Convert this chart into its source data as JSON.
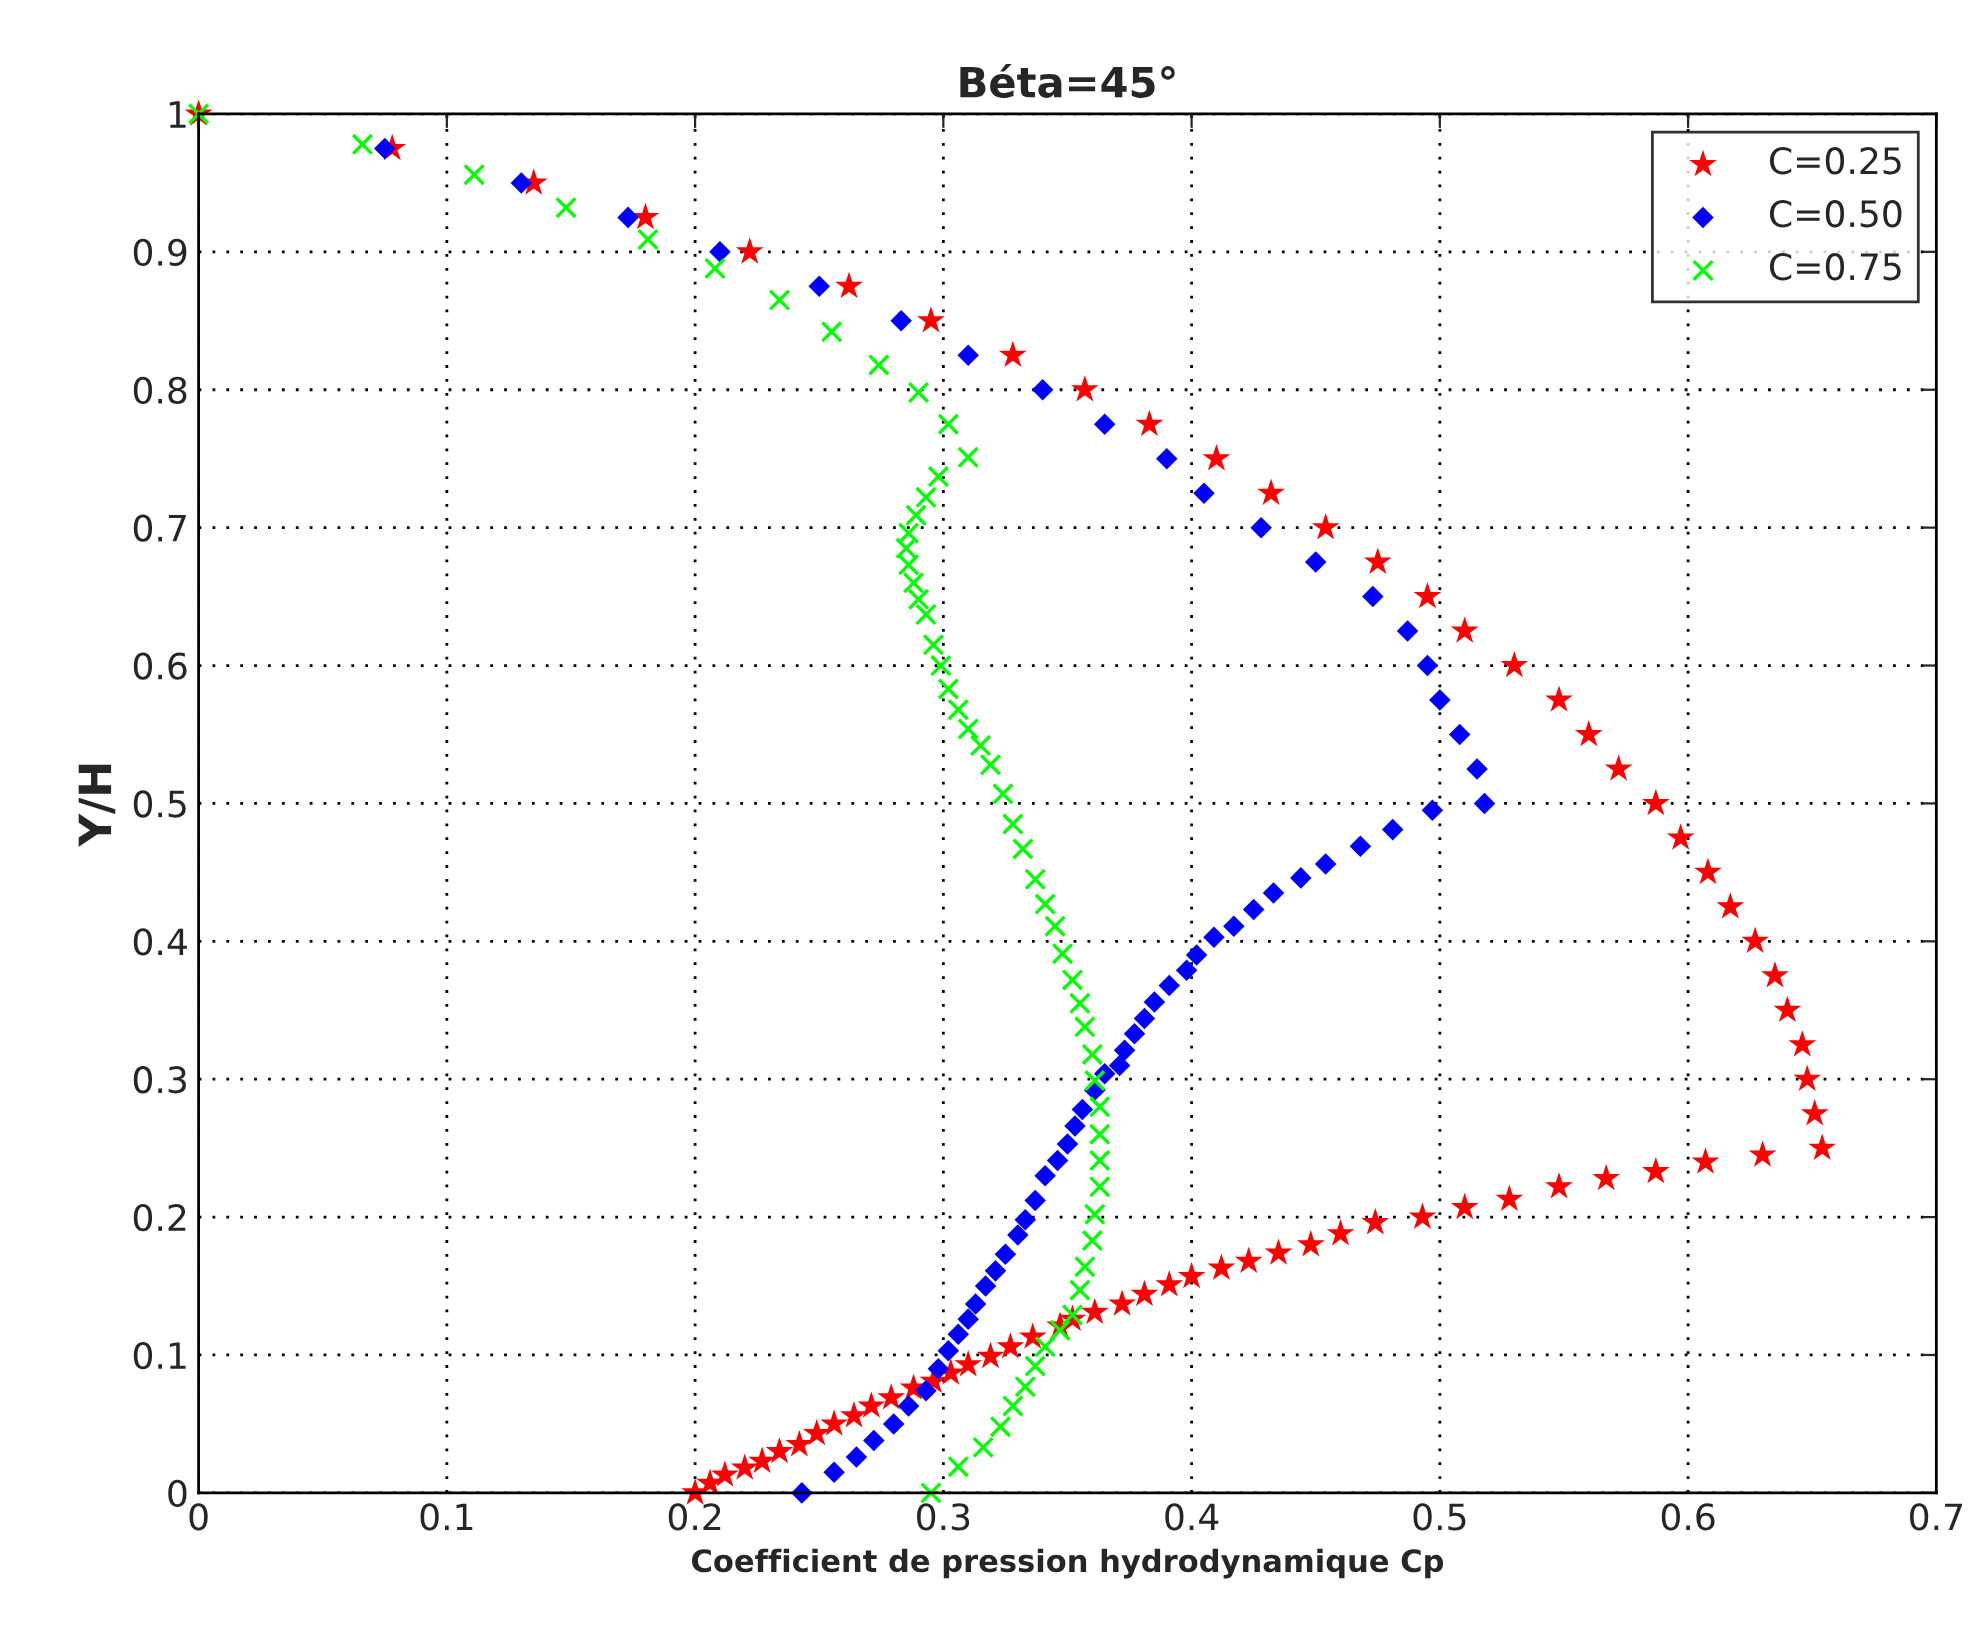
{
  "chart_data": {
    "type": "scatter",
    "title": "Béta=45°",
    "xlabel": "Coefficient de pression hydrodynamique Cp",
    "ylabel": "Y/H",
    "xlim": [
      0,
      0.7
    ],
    "xticks": [
      0,
      0.1,
      0.2,
      0.3,
      0.4,
      0.5,
      0.6,
      0.7
    ],
    "ylim": [
      0,
      1
    ],
    "yticks": [
      0,
      0.1,
      0.2,
      0.3,
      0.4,
      0.5,
      0.6,
      0.7,
      0.8,
      0.9,
      1
    ],
    "grid": true,
    "legend": "top right",
    "series": [
      {
        "name": "C=0.25",
        "color": "#ff0000",
        "marker": "star",
        "x": [
          0.0,
          0.078,
          0.135,
          0.18,
          0.222,
          0.262,
          0.295,
          0.328,
          0.357,
          0.383,
          0.41,
          0.432,
          0.454,
          0.475,
          0.495,
          0.51,
          0.53,
          0.548,
          0.56,
          0.572,
          0.587,
          0.597,
          0.608,
          0.617,
          0.627,
          0.635,
          0.64,
          0.646,
          0.648,
          0.651,
          0.654,
          0.63,
          0.607,
          0.587,
          0.567,
          0.548,
          0.528,
          0.51,
          0.493,
          0.474,
          0.46,
          0.448,
          0.435,
          0.423,
          0.412,
          0.4,
          0.391,
          0.381,
          0.372,
          0.361,
          0.352,
          0.347,
          0.336,
          0.327,
          0.319,
          0.31,
          0.303,
          0.296,
          0.288,
          0.279,
          0.271,
          0.264,
          0.256,
          0.249,
          0.242,
          0.234,
          0.227,
          0.22,
          0.212,
          0.206,
          0.2
        ],
        "values": [
          1,
          0.975,
          0.95,
          0.925,
          0.9,
          0.875,
          0.85,
          0.825,
          0.8,
          0.775,
          0.75,
          0.725,
          0.7,
          0.675,
          0.65,
          0.625,
          0.6,
          0.575,
          0.55,
          0.525,
          0.5,
          0.475,
          0.45,
          0.425,
          0.4,
          0.375,
          0.35,
          0.325,
          0.3,
          0.275,
          0.25,
          0.245,
          0.24,
          0.233,
          0.228,
          0.222,
          0.213,
          0.207,
          0.2,
          0.196,
          0.188,
          0.18,
          0.174,
          0.168,
          0.163,
          0.157,
          0.151,
          0.144,
          0.137,
          0.131,
          0.126,
          0.121,
          0.113,
          0.106,
          0.099,
          0.093,
          0.087,
          0.081,
          0.076,
          0.069,
          0.063,
          0.056,
          0.05,
          0.043,
          0.035,
          0.03,
          0.023,
          0.018,
          0.013,
          0.007,
          0.0
        ]
      },
      {
        "name": "C=0.50",
        "color": "#0000ff",
        "marker": "diamond",
        "x": [
          0.075,
          0.13,
          0.173,
          0.21,
          0.25,
          0.283,
          0.31,
          0.34,
          0.365,
          0.39,
          0.405,
          0.428,
          0.45,
          0.473,
          0.487,
          0.495,
          0.5,
          0.508,
          0.515,
          0.518,
          0.497,
          0.481,
          0.468,
          0.454,
          0.444,
          0.433,
          0.425,
          0.417,
          0.409,
          0.402,
          0.398,
          0.391,
          0.385,
          0.381,
          0.377,
          0.373,
          0.371,
          0.365,
          0.361,
          0.356,
          0.353,
          0.35,
          0.346,
          0.341,
          0.337,
          0.333,
          0.33,
          0.325,
          0.321,
          0.317,
          0.313,
          0.31,
          0.306,
          0.302,
          0.298,
          0.293,
          0.286,
          0.28,
          0.272,
          0.265,
          0.256,
          0.243
        ],
        "values": [
          0.975,
          0.95,
          0.925,
          0.9,
          0.875,
          0.85,
          0.825,
          0.8,
          0.775,
          0.75,
          0.725,
          0.7,
          0.675,
          0.65,
          0.625,
          0.6,
          0.575,
          0.55,
          0.525,
          0.5,
          0.495,
          0.481,
          0.469,
          0.456,
          0.446,
          0.435,
          0.423,
          0.411,
          0.403,
          0.39,
          0.379,
          0.368,
          0.356,
          0.344,
          0.333,
          0.321,
          0.31,
          0.304,
          0.292,
          0.278,
          0.266,
          0.253,
          0.241,
          0.23,
          0.212,
          0.198,
          0.187,
          0.173,
          0.161,
          0.15,
          0.137,
          0.126,
          0.115,
          0.103,
          0.09,
          0.074,
          0.063,
          0.05,
          0.038,
          0.026,
          0.015,
          0.0
        ]
      },
      {
        "name": "C=0.75",
        "color": "#00ff00",
        "marker": "cross",
        "x": [
          0.0,
          0.066,
          0.111,
          0.148,
          0.181,
          0.208,
          0.234,
          0.255,
          0.274,
          0.29,
          0.302,
          0.31,
          0.298,
          0.293,
          0.289,
          0.286,
          0.285,
          0.286,
          0.288,
          0.29,
          0.293,
          0.296,
          0.299,
          0.302,
          0.306,
          0.31,
          0.315,
          0.319,
          0.324,
          0.328,
          0.332,
          0.337,
          0.341,
          0.345,
          0.348,
          0.352,
          0.355,
          0.357,
          0.36,
          0.361,
          0.363,
          0.363,
          0.363,
          0.363,
          0.361,
          0.36,
          0.357,
          0.355,
          0.352,
          0.347,
          0.341,
          0.337,
          0.333,
          0.328,
          0.323,
          0.316,
          0.306,
          0.295
        ],
        "values": [
          1,
          0.978,
          0.956,
          0.932,
          0.909,
          0.888,
          0.865,
          0.842,
          0.818,
          0.798,
          0.775,
          0.751,
          0.737,
          0.722,
          0.709,
          0.696,
          0.685,
          0.673,
          0.66,
          0.648,
          0.637,
          0.615,
          0.6,
          0.583,
          0.568,
          0.554,
          0.542,
          0.528,
          0.507,
          0.485,
          0.467,
          0.445,
          0.427,
          0.411,
          0.391,
          0.372,
          0.355,
          0.338,
          0.318,
          0.299,
          0.28,
          0.26,
          0.241,
          0.222,
          0.202,
          0.183,
          0.164,
          0.147,
          0.129,
          0.118,
          0.106,
          0.092,
          0.077,
          0.063,
          0.048,
          0.033,
          0.019,
          0.0
        ]
      }
    ]
  }
}
